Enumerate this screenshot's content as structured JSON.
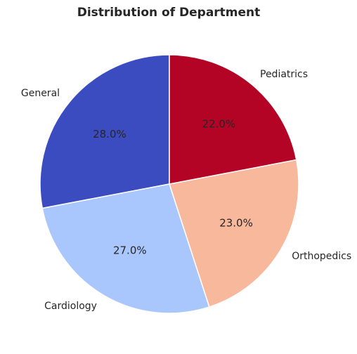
{
  "chart_data": {
    "type": "pie",
    "title": "Distribution of Department",
    "categories": [
      "General",
      "Cardiology",
      "Orthopedics",
      "Pediatrics"
    ],
    "values": [
      28.0,
      27.0,
      23.0,
      22.0
    ],
    "value_labels": [
      "28.0%",
      "27.0%",
      "23.0%",
      "22.0%"
    ],
    "colors": [
      "#3b4cc0",
      "#aac7fd",
      "#f7b89c",
      "#b40426"
    ],
    "start_angle": 90,
    "direction": "counterclockwise",
    "legend": "none"
  }
}
